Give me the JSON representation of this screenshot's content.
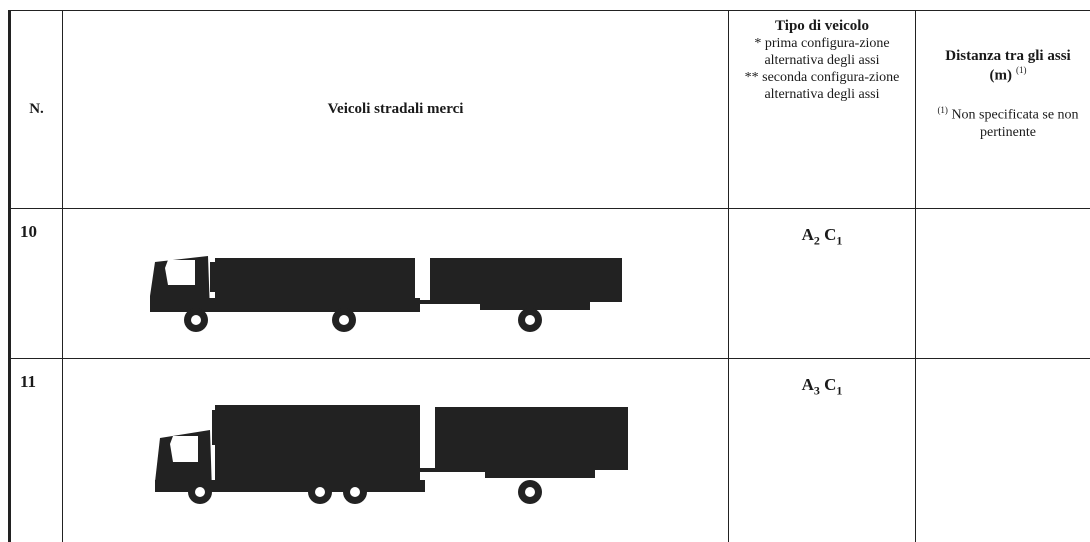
{
  "table": {
    "header": {
      "number": "N.",
      "vehicles": "Veicoli stradali merci",
      "type": {
        "title": "Tipo di veicolo",
        "note1": "* prima configura-zione alternativa degli assi",
        "note2": "** seconda configura-zione alternativa degli assi"
      },
      "distance": {
        "title": "Distanza tra gli assi",
        "unit": "(m)",
        "ref": "(1)",
        "footnote_mark": "(1)",
        "footnote": "Non specificata se non pertinente"
      }
    },
    "rows": [
      {
        "number": "10",
        "axles": [
          {
            "letter": "A",
            "sub": "2"
          },
          {
            "letter": "C",
            "sub": "1"
          }
        ]
      },
      {
        "number": "11",
        "axles": [
          {
            "letter": "A",
            "sub": "3"
          },
          {
            "letter": "C",
            "sub": "1"
          }
        ]
      }
    ]
  }
}
